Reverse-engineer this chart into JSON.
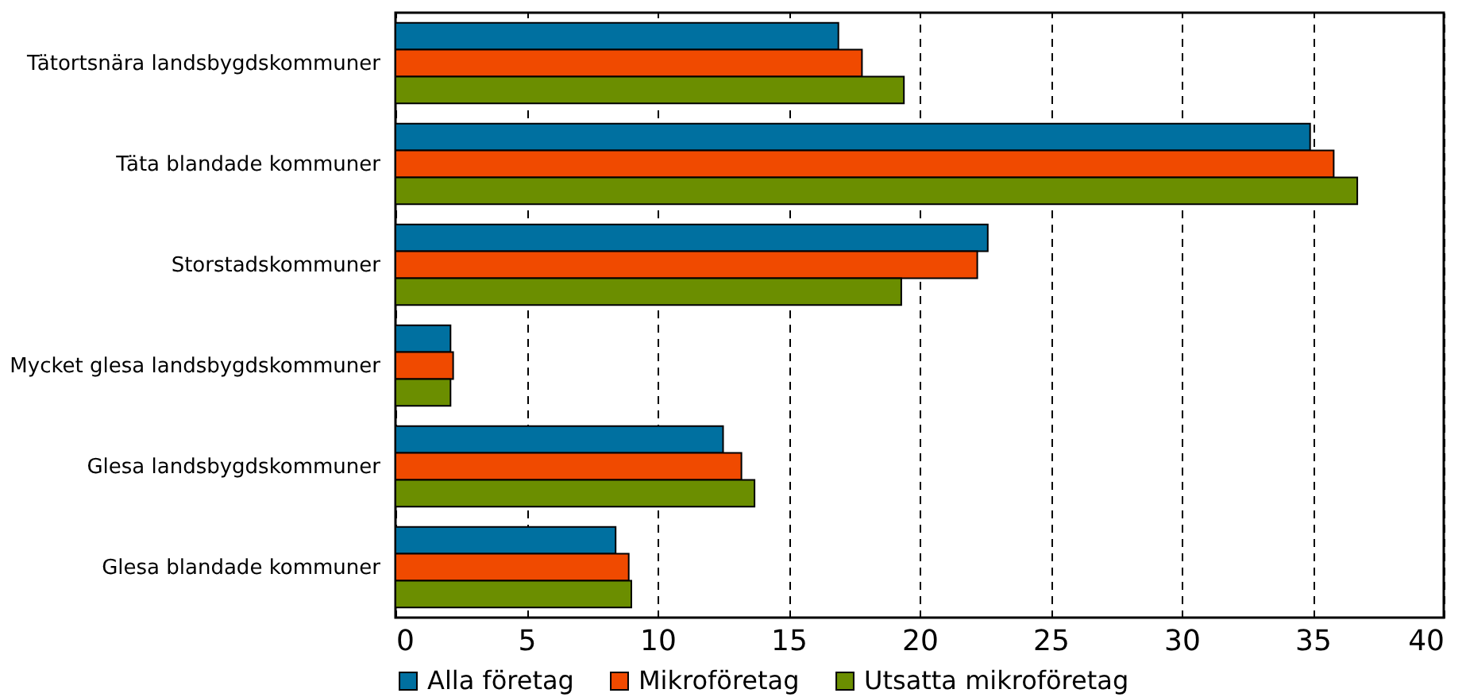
{
  "chart_data": {
    "type": "bar",
    "orientation": "horizontal",
    "categories": [
      "Tätortsnära landsbygdskommuner",
      "Täta blandade kommuner",
      "Storstadskommuner",
      "Mycket glesa landsbygdskommuner",
      "Glesa landsbygdskommuner",
      "Glesa blandade kommuner"
    ],
    "series": [
      {
        "name": "Alla företag",
        "color": "#0070a0",
        "values": [
          16.9,
          34.9,
          22.6,
          2.1,
          12.5,
          8.4
        ]
      },
      {
        "name": "Mikroföretag",
        "color": "#f04a00",
        "values": [
          17.8,
          35.8,
          22.2,
          2.2,
          13.2,
          8.9
        ]
      },
      {
        "name": "Utsatta mikroföretag",
        "color": "#6b8e00",
        "values": [
          19.4,
          36.7,
          19.3,
          2.1,
          13.7,
          9.0
        ]
      }
    ],
    "xlim": [
      0,
      40
    ],
    "xticks": [
      0,
      5,
      10,
      15,
      20,
      25,
      30,
      35,
      40
    ],
    "grid": "x",
    "legend": "bottom"
  }
}
